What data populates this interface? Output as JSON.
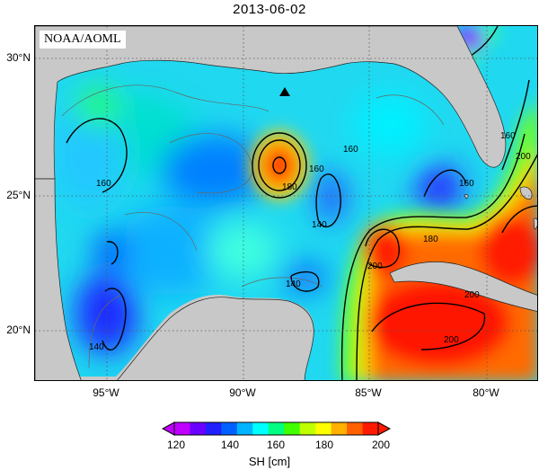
{
  "title": "2013-06-02",
  "source_badge": "NOAA/AOML",
  "lat_ticks": [
    "30°N",
    "25°N",
    "20°N"
  ],
  "lon_ticks": [
    "95°W",
    "90°W",
    "85°W",
    "80°W"
  ],
  "colorbar": {
    "ticks": [
      "120",
      "140",
      "160",
      "180",
      "200"
    ],
    "label": "SH [cm]",
    "colors": [
      "#c000ff",
      "#6a00ff",
      "#2020ff",
      "#0060ff",
      "#00b4ff",
      "#00ffff",
      "#00ff80",
      "#40ff00",
      "#c0ff00",
      "#ffff00",
      "#ffb000",
      "#ff6000",
      "#ff1a00"
    ]
  },
  "contour_labels": [
    "160",
    "180",
    "160",
    "140",
    "140",
    "160",
    "180",
    "200",
    "200",
    "200",
    "140",
    "160",
    "200",
    "160"
  ],
  "buoy_marker": "buoy-triangle-icon"
}
